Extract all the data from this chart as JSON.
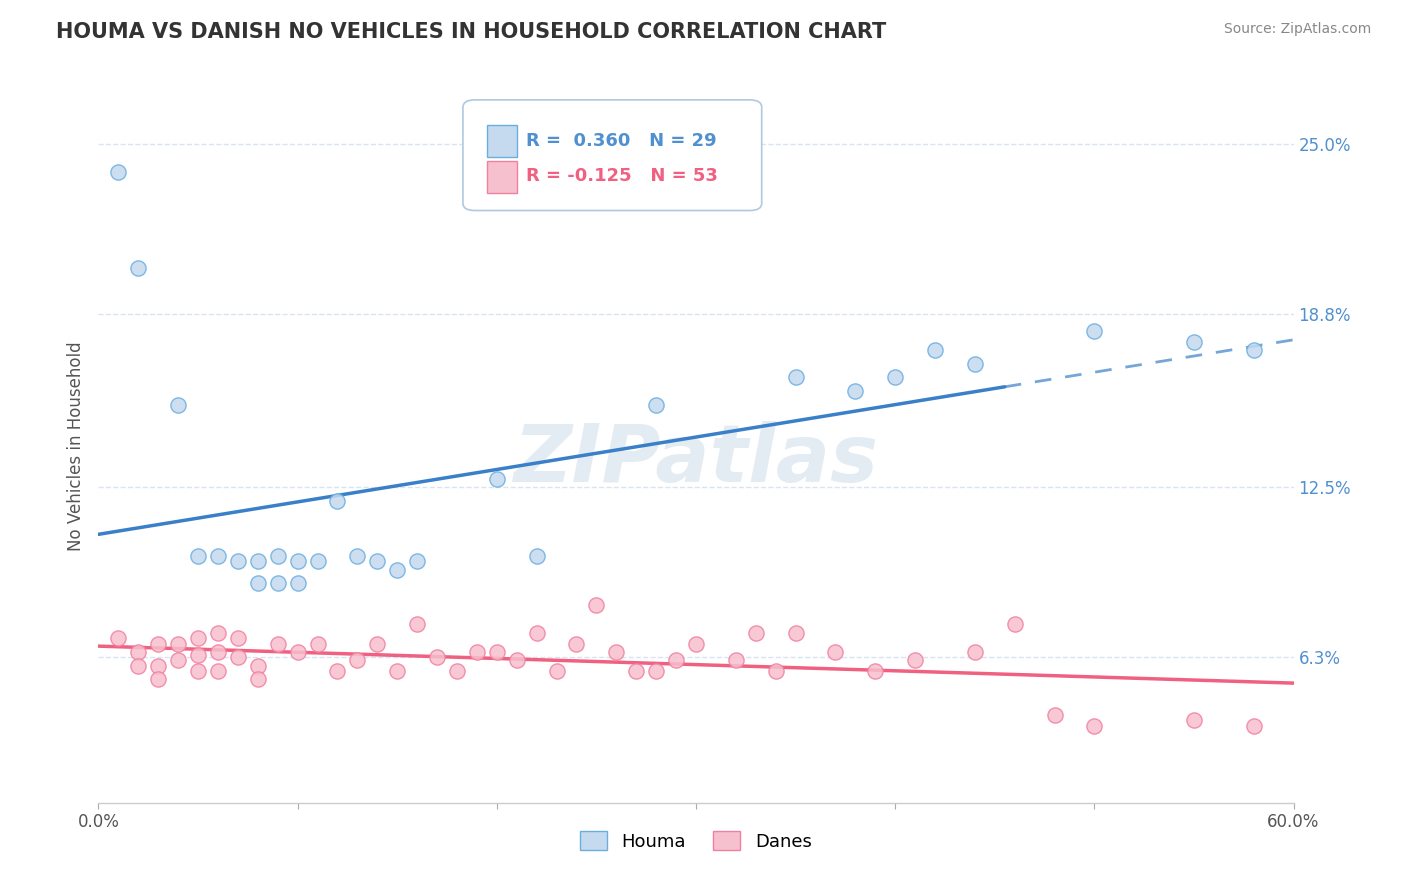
{
  "title": "HOUMA VS DANISH NO VEHICLES IN HOUSEHOLD CORRELATION CHART",
  "source": "Source: ZipAtlas.com",
  "ylabel": "No Vehicles in Household",
  "xlim": [
    0.0,
    0.6
  ],
  "ylim": [
    0.01,
    0.27
  ],
  "ytick_right_labels": [
    "25.0%",
    "18.8%",
    "12.5%",
    "6.3%"
  ],
  "ytick_right_values": [
    0.25,
    0.188,
    0.125,
    0.063
  ],
  "houma_fill_color": "#c5d9ef",
  "houma_edge_color": "#6aaee0",
  "danes_fill_color": "#f7c0ce",
  "danes_edge_color": "#f080a0",
  "houma_line_color": "#3a80c8",
  "danes_line_color": "#f06080",
  "houma_label": "Houma",
  "danes_label": "Danes",
  "houma_R": "0.360",
  "houma_N": "29",
  "danes_R": "-0.125",
  "danes_N": "53",
  "legend_blue_color": "#5090d0",
  "legend_pink_color": "#f06080",
  "watermark": "ZIPatlas",
  "watermark_color": "#c8d8e8",
  "background_color": "#ffffff",
  "grid_color": "#d8e4f0",
  "houma_x": [
    0.01,
    0.02,
    0.04,
    0.05,
    0.06,
    0.07,
    0.08,
    0.08,
    0.09,
    0.09,
    0.1,
    0.1,
    0.11,
    0.12,
    0.13,
    0.14,
    0.15,
    0.16,
    0.2,
    0.22,
    0.28,
    0.35,
    0.38,
    0.4,
    0.42,
    0.44,
    0.5,
    0.55,
    0.58
  ],
  "houma_y": [
    0.24,
    0.205,
    0.155,
    0.1,
    0.1,
    0.098,
    0.098,
    0.09,
    0.1,
    0.09,
    0.098,
    0.09,
    0.098,
    0.12,
    0.1,
    0.098,
    0.095,
    0.098,
    0.128,
    0.1,
    0.155,
    0.165,
    0.16,
    0.165,
    0.175,
    0.17,
    0.182,
    0.178,
    0.175
  ],
  "danes_x": [
    0.01,
    0.02,
    0.02,
    0.03,
    0.03,
    0.03,
    0.04,
    0.04,
    0.05,
    0.05,
    0.05,
    0.06,
    0.06,
    0.06,
    0.07,
    0.07,
    0.08,
    0.08,
    0.09,
    0.1,
    0.11,
    0.12,
    0.13,
    0.14,
    0.15,
    0.16,
    0.17,
    0.18,
    0.19,
    0.2,
    0.21,
    0.22,
    0.23,
    0.24,
    0.25,
    0.26,
    0.27,
    0.28,
    0.29,
    0.3,
    0.32,
    0.33,
    0.34,
    0.35,
    0.37,
    0.39,
    0.41,
    0.44,
    0.46,
    0.48,
    0.5,
    0.55,
    0.58
  ],
  "danes_y": [
    0.07,
    0.065,
    0.06,
    0.068,
    0.06,
    0.055,
    0.068,
    0.062,
    0.07,
    0.064,
    0.058,
    0.072,
    0.065,
    0.058,
    0.07,
    0.063,
    0.06,
    0.055,
    0.068,
    0.065,
    0.068,
    0.058,
    0.062,
    0.068,
    0.058,
    0.075,
    0.063,
    0.058,
    0.065,
    0.065,
    0.062,
    0.072,
    0.058,
    0.068,
    0.082,
    0.065,
    0.058,
    0.058,
    0.062,
    0.068,
    0.062,
    0.072,
    0.058,
    0.072,
    0.065,
    0.058,
    0.062,
    0.065,
    0.075,
    0.042,
    0.038,
    0.04,
    0.038
  ],
  "houma_line_x_solid_end": 0.455,
  "houma_line_x_dashed_start": 0.455
}
